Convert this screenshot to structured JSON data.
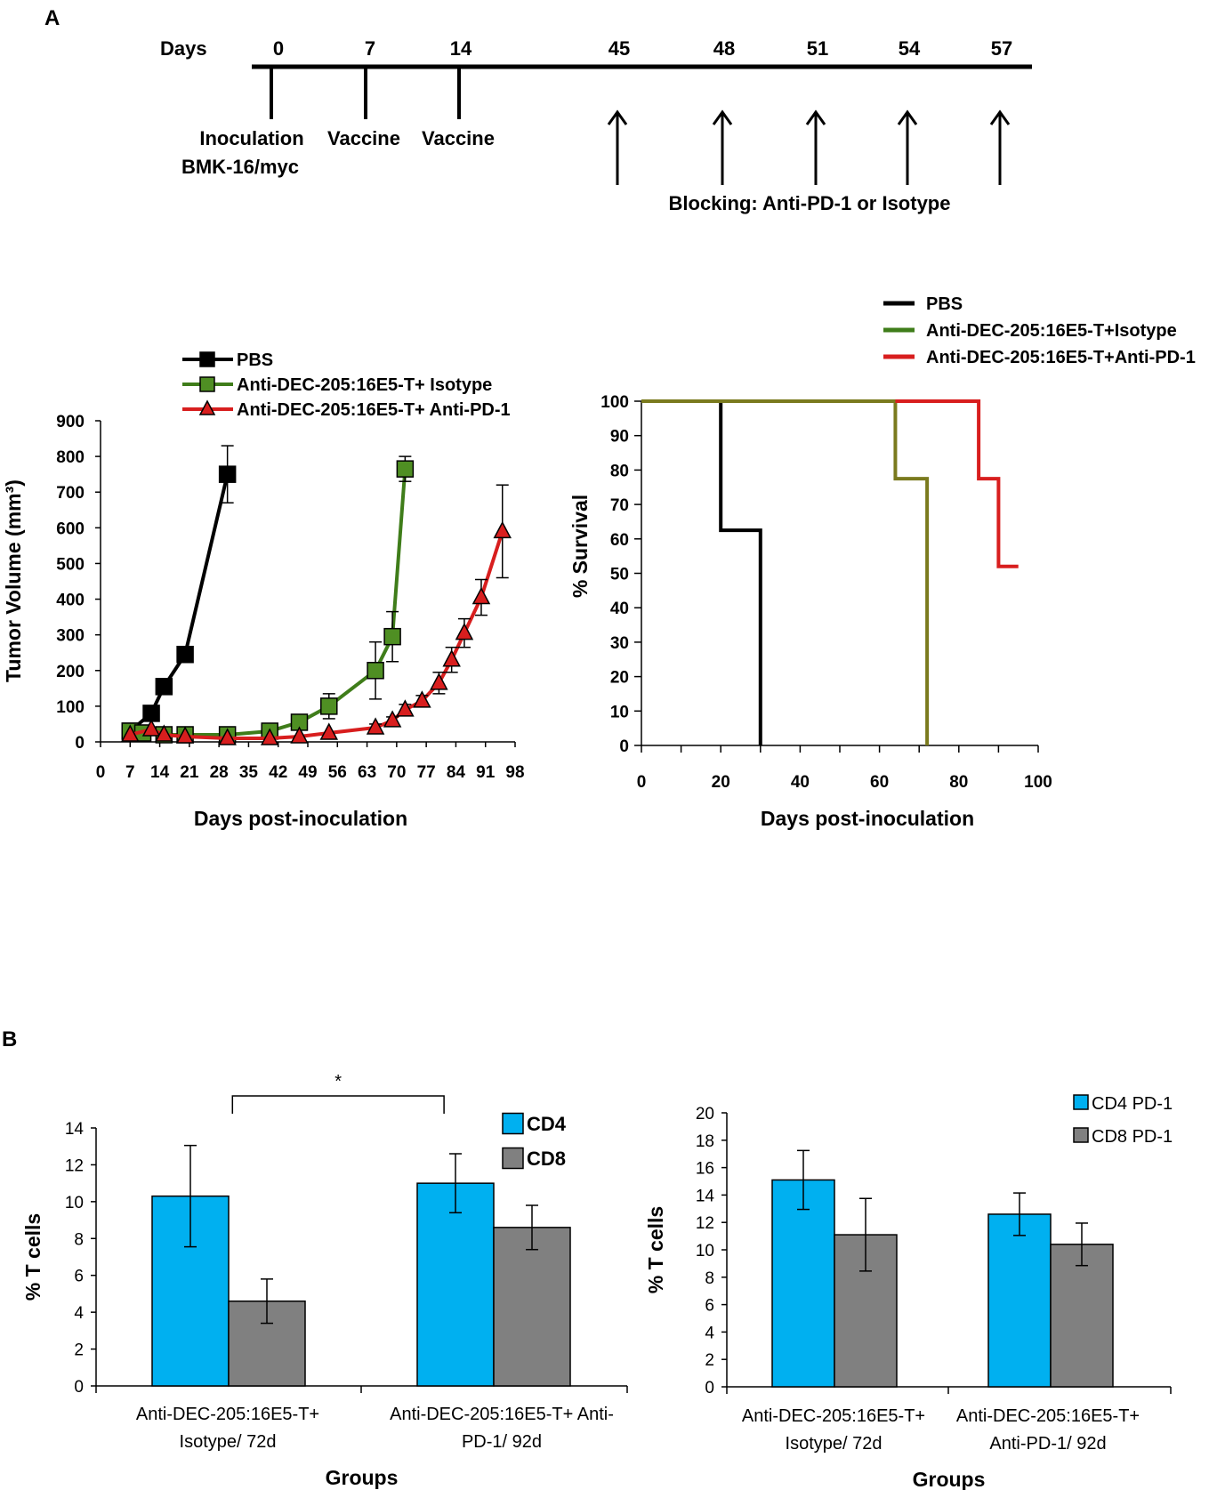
{
  "panel_a": {
    "label": "A",
    "timeline": {
      "days_label": "Days",
      "ticks": [
        {
          "day": "0",
          "event_lines": [
            "Inoculation",
            "BMK-16/myc"
          ]
        },
        {
          "day": "7",
          "event_lines": [
            "Vaccine"
          ]
        },
        {
          "day": "14",
          "event_lines": [
            "Vaccine"
          ]
        }
      ],
      "arrow_days": [
        "45",
        "48",
        "51",
        "54",
        "57"
      ],
      "blocking_label": "Blocking: Anti-PD-1 or Isotype"
    }
  },
  "panel_b": {
    "label": "B"
  },
  "colors": {
    "black": "#000000",
    "green": "#3f7d1a",
    "green_fill": "#4f8f23",
    "olive": "#7a7a1e",
    "red": "#d81e1e",
    "blue": "#00b0f0",
    "gray": "#808080"
  },
  "chart_data": [
    {
      "id": "tumor",
      "type": "line",
      "xlabel": "Days post-inoculation",
      "ylabel": "Tumor Volume (mm³)",
      "xlim": [
        0,
        98
      ],
      "ylim": [
        0,
        900
      ],
      "xticks": [
        0,
        7,
        14,
        21,
        28,
        35,
        42,
        49,
        56,
        63,
        70,
        77,
        84,
        91,
        98
      ],
      "yticks": [
        0,
        100,
        200,
        300,
        400,
        500,
        600,
        700,
        800,
        900
      ],
      "series": [
        {
          "name": "PBS",
          "marker": "square",
          "color": "#000000",
          "fill": "#000000",
          "x": [
            7,
            12,
            15,
            20,
            30
          ],
          "y": [
            30,
            80,
            155,
            245,
            750
          ],
          "err": [
            0,
            0,
            0,
            0,
            80
          ]
        },
        {
          "name": "Anti-DEC-205:16E5-T+ Isotype",
          "marker": "square",
          "color": "#3f7d1a",
          "fill": "#4f8f23",
          "x": [
            7,
            10,
            15,
            20,
            30,
            40,
            47,
            54,
            65,
            69,
            72
          ],
          "y": [
            30,
            25,
            20,
            20,
            20,
            30,
            55,
            100,
            200,
            295,
            765
          ],
          "err": [
            0,
            0,
            0,
            0,
            0,
            0,
            0,
            35,
            80,
            70,
            35
          ]
        },
        {
          "name": "Anti-DEC-205:16E5-T+ Anti-PD-1",
          "marker": "triangle",
          "color": "#d81e1e",
          "fill": "#d81e1e",
          "x": [
            7,
            12,
            15,
            20,
            30,
            40,
            47,
            54,
            65,
            69,
            72,
            76,
            80,
            83,
            86,
            90,
            95
          ],
          "y": [
            20,
            35,
            20,
            15,
            10,
            10,
            15,
            25,
            40,
            60,
            90,
            115,
            165,
            230,
            305,
            405,
            590
          ],
          "err": [
            0,
            0,
            0,
            0,
            0,
            0,
            0,
            0,
            10,
            10,
            15,
            15,
            30,
            35,
            40,
            50,
            130
          ]
        }
      ]
    },
    {
      "id": "survival",
      "type": "line",
      "xlabel": "Days post-inoculation",
      "ylabel": "% Survival",
      "xlim": [
        0,
        100
      ],
      "ylim": [
        0,
        100
      ],
      "xticks": [
        0,
        20,
        40,
        60,
        80,
        100
      ],
      "yticks": [
        0,
        10,
        20,
        30,
        40,
        50,
        60,
        70,
        80,
        90,
        100
      ],
      "legend_colors": [
        "#000000",
        "#3f7d1a",
        "#d81e1e"
      ],
      "series": [
        {
          "name": "PBS",
          "color": "#000000",
          "x": [
            0,
            20,
            20,
            30,
            30
          ],
          "y": [
            100,
            100,
            62.5,
            62.5,
            0
          ]
        },
        {
          "name": "Anti-DEC-205:16E5-T+Isotype",
          "color": "#7a7a1e",
          "x": [
            0,
            64,
            64,
            72,
            72
          ],
          "y": [
            100,
            100,
            77.5,
            77.5,
            0
          ]
        },
        {
          "name": "Anti-DEC-205:16E5-T+Anti-PD-1",
          "color": "#d81e1e",
          "x": [
            64,
            85,
            85,
            90,
            90,
            95
          ],
          "y": [
            100,
            100,
            77.5,
            77.5,
            52,
            52
          ]
        }
      ]
    },
    {
      "id": "tcells",
      "type": "bar",
      "ylabel": "% T cells",
      "xlabel": "Groups",
      "ylim": [
        0,
        14
      ],
      "yticks": [
        0,
        2,
        4,
        6,
        8,
        10,
        12,
        14
      ],
      "categories": [
        [
          "Anti-DEC-205:16E5-T+",
          "Isotype/ 72d"
        ],
        [
          "Anti-DEC-205:16E5-T+ Anti-",
          "PD-1/ 92d"
        ]
      ],
      "series": [
        {
          "name": "CD4",
          "color": "#00b0f0",
          "values": [
            10.3,
            11.0
          ],
          "err": [
            2.75,
            1.6
          ]
        },
        {
          "name": "CD8",
          "color": "#808080",
          "values": [
            4.6,
            8.6
          ],
          "err": [
            1.2,
            1.2
          ]
        }
      ],
      "significance": {
        "label": "*",
        "between": [
          0,
          1
        ]
      }
    },
    {
      "id": "pd1",
      "type": "bar",
      "ylabel": "% T cells",
      "xlabel": "Groups",
      "ylim": [
        0,
        20
      ],
      "yticks": [
        0,
        2,
        4,
        6,
        8,
        10,
        12,
        14,
        16,
        18,
        20
      ],
      "categories": [
        [
          "Anti-DEC-205:16E5-T+",
          "Isotype/ 72d"
        ],
        [
          "Anti-DEC-205:16E5-T+",
          "Anti-PD-1/ 92d"
        ]
      ],
      "series": [
        {
          "name": "CD4 PD-1",
          "color": "#00b0f0",
          "values": [
            15.1,
            12.6
          ],
          "err": [
            2.15,
            1.55
          ]
        },
        {
          "name": "CD8 PD-1",
          "color": "#808080",
          "values": [
            11.1,
            10.4
          ],
          "err": [
            2.65,
            1.55
          ]
        }
      ]
    }
  ]
}
